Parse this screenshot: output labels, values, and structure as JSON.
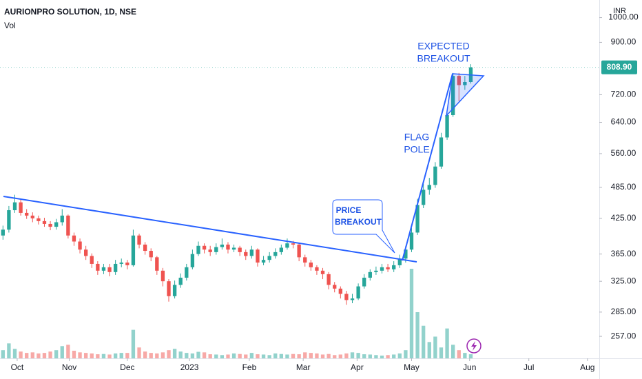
{
  "chart_data": {
    "type": "candlestick",
    "title": "AURIONPRO SOLUTION, 1D, NSE",
    "volume_label": "Vol",
    "currency": "INR",
    "log_scale": true,
    "up_color": "#26a69a",
    "down_color": "#ef5350",
    "ylim": [
      234,
      1078
    ],
    "yticks": [
      {
        "value": 257,
        "label": "257.00"
      },
      {
        "value": 285,
        "label": "285.00"
      },
      {
        "value": 325,
        "label": "325.00"
      },
      {
        "value": 365,
        "label": "365.00"
      },
      {
        "value": 425,
        "label": "425.00"
      },
      {
        "value": 485,
        "label": "485.00"
      },
      {
        "value": 560,
        "label": "560.00"
      },
      {
        "value": 640,
        "label": "640.00"
      },
      {
        "value": 720,
        "label": "720.00"
      },
      {
        "value": 900,
        "label": "900.00"
      },
      {
        "value": 1000,
        "label": "1000.00"
      }
    ],
    "last_price": {
      "value": 808.9,
      "label": "808.90"
    },
    "xlim": [
      -0.5,
      100.7
    ],
    "xticks": [
      {
        "value": 2.4,
        "label": "Oct"
      },
      {
        "value": 11.2,
        "label": "Nov"
      },
      {
        "value": 21,
        "label": "Dec"
      },
      {
        "value": 31.5,
        "label": "2023"
      },
      {
        "value": 41.6,
        "label": "Feb"
      },
      {
        "value": 50.7,
        "label": "Mar"
      },
      {
        "value": 59.8,
        "label": "Apr"
      },
      {
        "value": 69,
        "label": "May"
      },
      {
        "value": 78.8,
        "label": "Jun"
      },
      {
        "value": 88.8,
        "label": "Jul"
      },
      {
        "value": 98.7,
        "label": "Aug"
      }
    ],
    "open": [
      395,
      405,
      440,
      455,
      435,
      430,
      425,
      420,
      415,
      410,
      418,
      430,
      395,
      385,
      372,
      362,
      350,
      340,
      345,
      338,
      350,
      352,
      348,
      395,
      380,
      370,
      360,
      340,
      325,
      305,
      320,
      330,
      345,
      365,
      378,
      372,
      368,
      376,
      380,
      372,
      375,
      368,
      362,
      372,
      352,
      356,
      362,
      368,
      375,
      382,
      380,
      360,
      352,
      345,
      340,
      335,
      320,
      315,
      308,
      300,
      302,
      318,
      330,
      338,
      340,
      345,
      342,
      348,
      358,
      372,
      400,
      450,
      480,
      490,
      530,
      600,
      660,
      780,
      750,
      760
    ],
    "high": [
      412,
      448,
      470,
      460,
      442,
      436,
      430,
      426,
      420,
      424,
      442,
      432,
      400,
      390,
      378,
      366,
      354,
      350,
      350,
      356,
      358,
      356,
      405,
      398,
      384,
      374,
      362,
      344,
      328,
      326,
      336,
      350,
      372,
      385,
      382,
      378,
      382,
      390,
      384,
      380,
      378,
      372,
      378,
      374,
      362,
      368,
      374,
      380,
      390,
      386,
      382,
      364,
      356,
      348,
      344,
      338,
      324,
      318,
      312,
      308,
      322,
      335,
      342,
      346,
      350,
      350,
      354,
      364,
      378,
      408,
      462,
      492,
      505,
      540,
      612,
      672,
      790,
      790,
      780,
      820
    ],
    "low": [
      388,
      400,
      435,
      430,
      424,
      418,
      414,
      410,
      404,
      405,
      412,
      390,
      378,
      366,
      356,
      344,
      334,
      335,
      332,
      334,
      345,
      342,
      346,
      374,
      364,
      354,
      334,
      318,
      298,
      302,
      316,
      326,
      342,
      362,
      366,
      362,
      364,
      372,
      366,
      368,
      362,
      356,
      358,
      346,
      348,
      352,
      358,
      364,
      372,
      374,
      354,
      346,
      340,
      334,
      328,
      314,
      310,
      302,
      294,
      296,
      300,
      315,
      326,
      334,
      336,
      338,
      338,
      344,
      352,
      368,
      396,
      444,
      470,
      484,
      525,
      594,
      655,
      700,
      735,
      755
    ],
    "close": [
      405,
      440,
      455,
      435,
      430,
      425,
      420,
      415,
      410,
      418,
      430,
      395,
      385,
      372,
      362,
      350,
      340,
      345,
      338,
      350,
      352,
      348,
      395,
      380,
      370,
      360,
      340,
      325,
      305,
      320,
      330,
      345,
      365,
      378,
      372,
      368,
      376,
      380,
      372,
      375,
      368,
      362,
      372,
      352,
      356,
      362,
      368,
      375,
      382,
      380,
      360,
      352,
      345,
      340,
      335,
      320,
      315,
      308,
      300,
      302,
      318,
      330,
      338,
      340,
      345,
      342,
      348,
      358,
      372,
      400,
      450,
      480,
      490,
      530,
      600,
      660,
      780,
      750,
      760,
      808.9
    ],
    "volume": [
      30,
      55,
      35,
      25,
      20,
      22,
      18,
      20,
      25,
      30,
      45,
      50,
      28,
      22,
      20,
      18,
      15,
      16,
      14,
      18,
      20,
      20,
      105,
      40,
      25,
      20,
      18,
      22,
      30,
      35,
      25,
      20,
      18,
      24,
      22,
      15,
      14,
      12,
      14,
      18,
      16,
      14,
      20,
      15,
      14,
      12,
      18,
      16,
      14,
      16,
      15,
      22,
      20,
      18,
      14,
      16,
      12,
      14,
      18,
      22,
      20,
      15,
      14,
      12,
      10,
      12,
      14,
      18,
      30,
      330,
      170,
      120,
      60,
      80,
      40,
      110,
      50,
      30,
      20,
      15
    ],
    "annotations": [
      {
        "lines": [
          "EXPECTED",
          "BREAKOUT"
        ]
      },
      {
        "lines": [
          "FLAG",
          "POLE"
        ]
      },
      {
        "lines": [
          "PRICE",
          "BREAKOUT"
        ]
      }
    ]
  }
}
